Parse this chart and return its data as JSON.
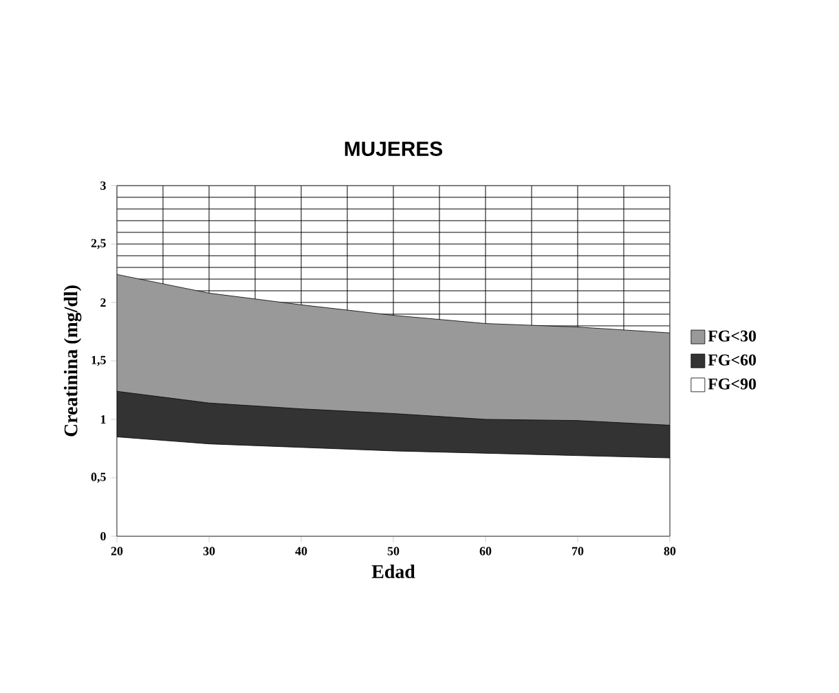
{
  "chart_data": {
    "type": "area",
    "title": "MUJERES",
    "xlabel": "Edad",
    "ylabel": "Creatinina (mg/dl)",
    "x": [
      20,
      30,
      40,
      50,
      60,
      70,
      80
    ],
    "series": [
      {
        "name": "FG<30",
        "color": "#999999",
        "values": [
          2.24,
          2.08,
          1.98,
          1.89,
          1.82,
          1.79,
          1.74
        ]
      },
      {
        "name": "FG<60",
        "color": "#333333",
        "values": [
          1.24,
          1.14,
          1.09,
          1.05,
          1.0,
          0.99,
          0.95
        ]
      },
      {
        "name": "FG<90",
        "color": "#ffffff",
        "values": [
          0.85,
          0.79,
          0.76,
          0.73,
          0.71,
          0.69,
          0.67
        ]
      }
    ],
    "xlim": [
      20,
      80
    ],
    "xticks": [
      20,
      30,
      40,
      50,
      60,
      70,
      80
    ],
    "ylim": [
      0,
      3
    ],
    "yticks": [
      0,
      {
        "value": 0.5,
        "label": "0,5"
      },
      1,
      {
        "value": 1.5,
        "label": "1,5"
      },
      2,
      {
        "value": 2.5,
        "label": "2,5"
      },
      3
    ],
    "grid": true,
    "legend": "right"
  }
}
